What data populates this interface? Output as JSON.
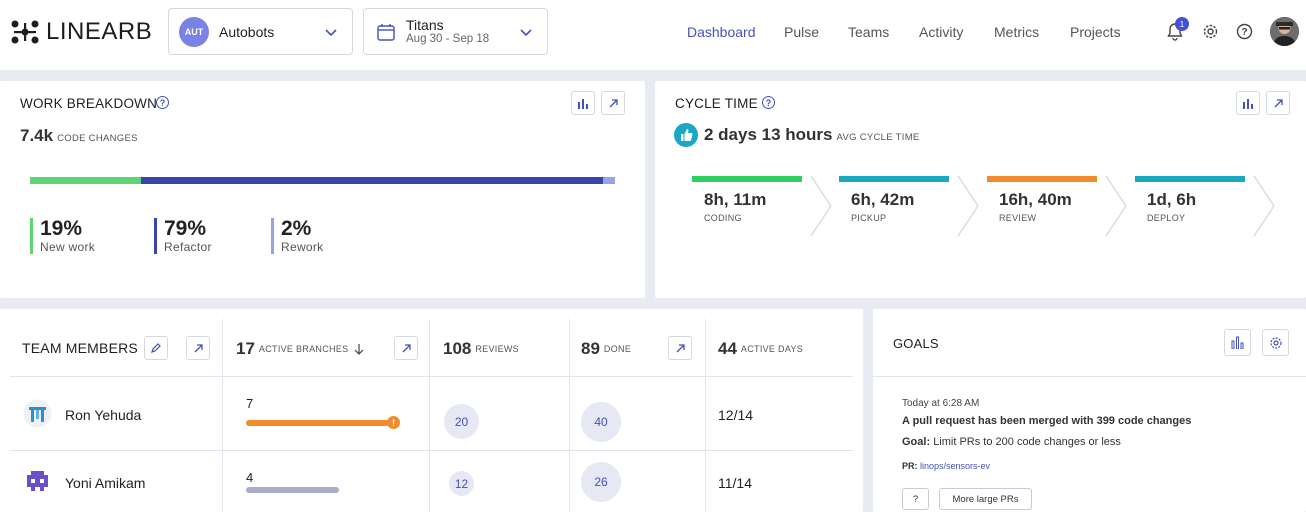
{
  "header": {
    "logo_text": "LINEARB",
    "team_selector": {
      "avatar": "AUT",
      "name": "Autobots"
    },
    "sprint_selector": {
      "title": "Titans",
      "dates": "Aug 30 - Sep 18"
    },
    "nav": [
      "Dashboard",
      "Pulse",
      "Teams",
      "Activity",
      "Metrics",
      "Projects"
    ],
    "active_nav": "Dashboard",
    "notification_count": "1",
    "colors": {
      "accent": "#4452b8",
      "bg": "#e9ebf3"
    }
  },
  "work_breakdown": {
    "title": "WORK BREAKDOWN",
    "total": "7.4k",
    "total_label": "CODE CHANGES",
    "segments": [
      {
        "pct_text": "19%",
        "label": "New work",
        "value": 19,
        "color": "#5bd672"
      },
      {
        "pct_text": "79%",
        "label": "Refactor",
        "value": 79,
        "color": "#3a44a8"
      },
      {
        "pct_text": "2%",
        "label": "Rework",
        "value": 2,
        "color": "#9aa0ea"
      }
    ]
  },
  "cycle_time": {
    "title": "CYCLE TIME",
    "value": "2 days 13 hours",
    "value_label": "AVG CYCLE TIME",
    "stages": [
      {
        "value": "8h, 11m",
        "label": "CODING",
        "color": "#2ed15f"
      },
      {
        "value": "6h, 42m",
        "label": "PICKUP",
        "color": "#1aa7c4"
      },
      {
        "value": "16h, 40m",
        "label": "REVIEW",
        "color": "#f28a2e"
      },
      {
        "value": "1d, 6h",
        "label": "DEPLOY",
        "color": "#1aa7c4"
      }
    ]
  },
  "team_members": {
    "title": "TEAM MEMBERS",
    "columns": [
      {
        "num": "17",
        "label": "ACTIVE BRANCHES"
      },
      {
        "num": "108",
        "label": "REVIEWS"
      },
      {
        "num": "89",
        "label": "DONE"
      },
      {
        "num": "44",
        "label": "ACTIVE DAYS"
      }
    ],
    "rows": [
      {
        "name": "Ron Yehuda",
        "branches": "7",
        "branch_fill": 1.0,
        "reviews": "20",
        "done": "40",
        "days": "12/14"
      },
      {
        "name": "Yoni Amikam",
        "branches": "4",
        "branch_fill": 0.65,
        "reviews": "12",
        "done": "26",
        "days": "11/14"
      }
    ]
  },
  "goals": {
    "title": "GOALS",
    "time": "Today at 6:28 AM",
    "message": "A pull request has been merged with 399 code changes",
    "goal_prefix": "Goal:",
    "goal_text": "Limit PRs to 200 code changes or less",
    "pr_prefix": "PR:",
    "pr_link": "linops/sensors-ev",
    "buttons": [
      "?",
      "More large PRs"
    ]
  }
}
